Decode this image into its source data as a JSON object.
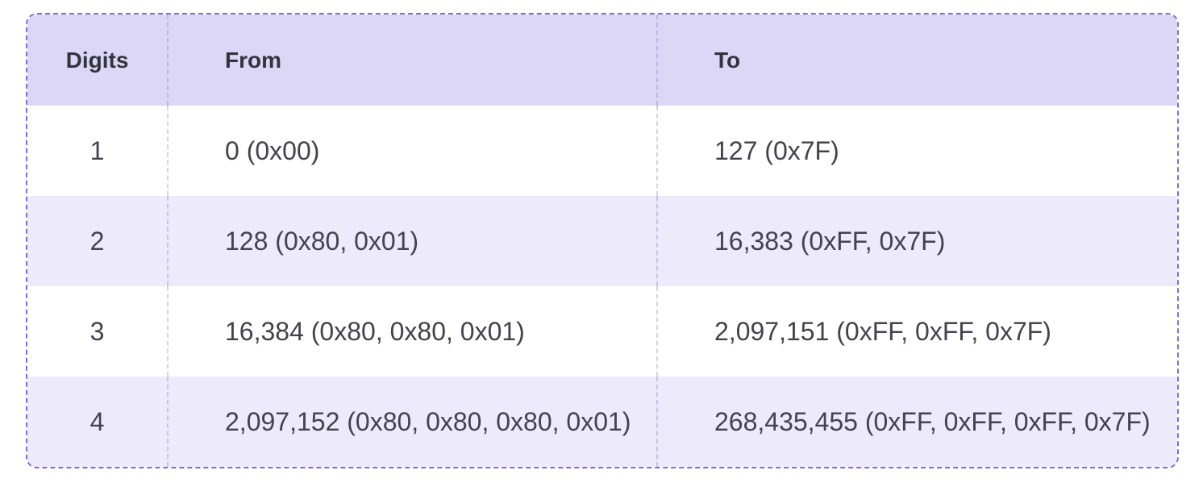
{
  "theme": {
    "border": "#7B6ED8",
    "header-bg": "#DCD7F6",
    "alt-row-bg": "#EDEAFB",
    "row-bg": "#FFFFFF",
    "header-text": "#33343E",
    "cell-text": "#42434D",
    "divider": "rgba(118, 104, 219, 0.30)",
    "page-bg": "#FFFFFF"
  },
  "table": {
    "columns": [
      {
        "label": "Digits"
      },
      {
        "label": "From"
      },
      {
        "label": "To"
      }
    ],
    "rows": [
      {
        "digits": "1",
        "from": "0 (0x00)",
        "to": "127 (0x7F)"
      },
      {
        "digits": "2",
        "from": "128 (0x80, 0x01)",
        "to": "16,383 (0xFF, 0x7F)"
      },
      {
        "digits": "3",
        "from": "16,384 (0x80, 0x80, 0x01)",
        "to": "2,097,151 (0xFF, 0xFF, 0x7F)"
      },
      {
        "digits": "4",
        "from": "2,097,152 (0x80, 0x80, 0x80, 0x01)",
        "to": "268,435,455 (0xFF, 0xFF, 0xFF, 0x7F)"
      }
    ]
  }
}
